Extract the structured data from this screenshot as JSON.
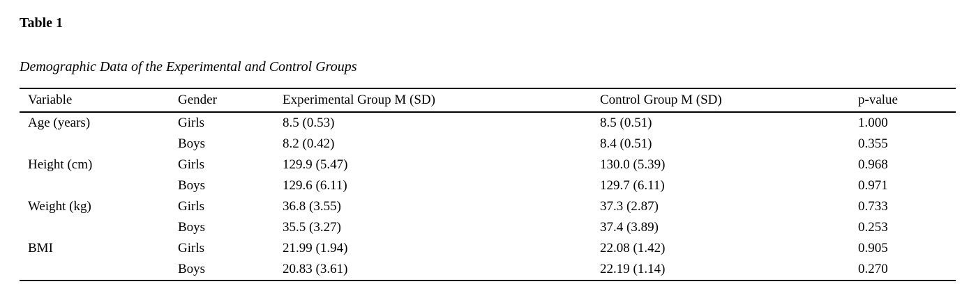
{
  "title": "Table 1",
  "caption": "Demographic Data of the Experimental and Control Groups",
  "colors": {
    "text": "#000000",
    "background": "#ffffff",
    "rule": "#000000"
  },
  "table": {
    "columns": [
      "Variable",
      "Gender",
      "Experimental Group M (SD)",
      "Control Group M (SD)",
      "p-value"
    ],
    "rows": [
      [
        "Age (years)",
        "Girls",
        "8.5 (0.53)",
        "8.5 (0.51)",
        "1.000"
      ],
      [
        "",
        "Boys",
        "8.2 (0.42)",
        "8.4 (0.51)",
        "0.355"
      ],
      [
        "Height (cm)",
        "Girls",
        "129.9 (5.47)",
        "130.0 (5.39)",
        "0.968"
      ],
      [
        "",
        "Boys",
        "129.6 (6.11)",
        "129.7 (6.11)",
        "0.971"
      ],
      [
        "Weight (kg)",
        "Girls",
        "36.8 (3.55)",
        "37.3 (2.87)",
        "0.733"
      ],
      [
        "",
        "Boys",
        "35.5 (3.27)",
        "37.4 (3.89)",
        "0.253"
      ],
      [
        "BMI",
        "Girls",
        "21.99 (1.94)",
        "22.08 (1.42)",
        "0.905"
      ],
      [
        "",
        "Boys",
        "20.83 (3.61)",
        "22.19 (1.14)",
        "0.270"
      ]
    ]
  }
}
